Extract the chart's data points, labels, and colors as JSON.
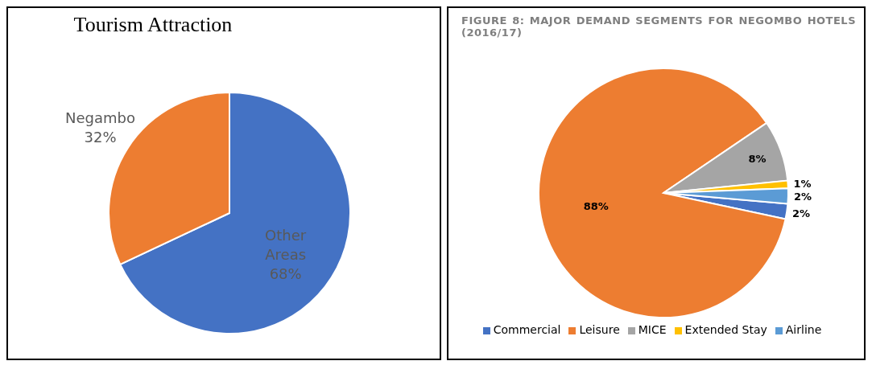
{
  "chart_data": [
    {
      "type": "pie",
      "title": "Tourism Attraction",
      "categories": [
        "Other Areas",
        "Negambo"
      ],
      "values": [
        68,
        32
      ],
      "value_labels": [
        "68%",
        "32%"
      ],
      "colors": [
        "#4472c4",
        "#ed7d31"
      ],
      "legend": false
    },
    {
      "type": "pie",
      "title": "FIGURE 8: MAJOR DEMAND SEGMENTS FOR NEGOMBO HOTELS (2016/17)",
      "categories": [
        "Commercial",
        "Leisure",
        "MICE",
        "Extended Stay",
        "Airline"
      ],
      "values": [
        2,
        88,
        8,
        1,
        2
      ],
      "value_labels": [
        "2%",
        "88%",
        "8%",
        "1%",
        "2%"
      ],
      "colors": [
        "#4472c4",
        "#ed7d31",
        "#a5a5a5",
        "#ffc000",
        "#5b9bd5"
      ],
      "legend": "bottom"
    }
  ]
}
